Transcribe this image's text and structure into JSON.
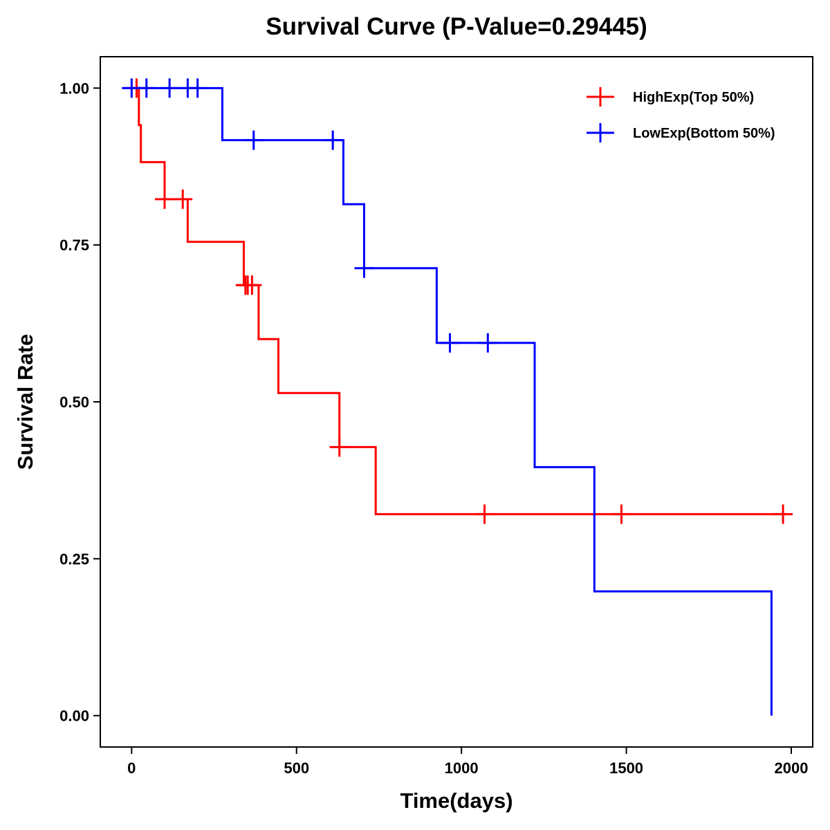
{
  "chart_data": {
    "type": "line",
    "subtype": "kaplan-meier-step",
    "title": "Survival Curve (P-Value=0.29445)",
    "xlabel": "Time(days)",
    "ylabel": "Survival Rate",
    "xlim": [
      -95,
      2065
    ],
    "ylim": [
      -0.05,
      1.05
    ],
    "xticks": [
      0,
      500,
      1000,
      1500,
      2000
    ],
    "xtick_labels": [
      "0",
      "500",
      "1000",
      "1500",
      "2000"
    ],
    "yticks": [
      0,
      0.25,
      0.5,
      0.75,
      1.0
    ],
    "ytick_labels": [
      "0.00",
      "0.25",
      "0.50",
      "0.75",
      "1.00"
    ],
    "grid": false,
    "legend_position": "top-right",
    "series": [
      {
        "name": "HighExp(Top 50%)",
        "color": "#ff0000",
        "steps": [
          [
            0,
            1.0
          ],
          [
            22,
            0.941
          ],
          [
            28,
            0.882
          ],
          [
            100,
            0.823
          ],
          [
            170,
            0.755
          ],
          [
            340,
            0.686
          ],
          [
            385,
            0.6
          ],
          [
            445,
            0.514
          ],
          [
            630,
            0.428
          ],
          [
            740,
            0.321
          ],
          [
            1985,
            0.321
          ]
        ],
        "censored": [
          [
            15,
            1.0
          ],
          [
            100,
            0.823
          ],
          [
            155,
            0.823
          ],
          [
            345,
            0.686
          ],
          [
            352,
            0.686
          ],
          [
            365,
            0.686
          ],
          [
            630,
            0.428
          ],
          [
            1070,
            0.321
          ],
          [
            1485,
            0.321
          ],
          [
            1975,
            0.321
          ]
        ]
      },
      {
        "name": "LowExp(Bottom 50%)",
        "color": "#0000ff",
        "steps": [
          [
            -25,
            1.0
          ],
          [
            275,
            0.917
          ],
          [
            642,
            0.815
          ],
          [
            705,
            0.713
          ],
          [
            925,
            0.594
          ],
          [
            1222,
            0.396
          ],
          [
            1403,
            0.198
          ],
          [
            1940,
            0.0
          ]
        ],
        "censored": [
          [
            0,
            1.0
          ],
          [
            45,
            1.0
          ],
          [
            115,
            1.0
          ],
          [
            170,
            1.0
          ],
          [
            200,
            1.0
          ],
          [
            370,
            0.917
          ],
          [
            610,
            0.917
          ],
          [
            705,
            0.713
          ],
          [
            965,
            0.594
          ],
          [
            1080,
            0.594
          ]
        ]
      }
    ]
  }
}
